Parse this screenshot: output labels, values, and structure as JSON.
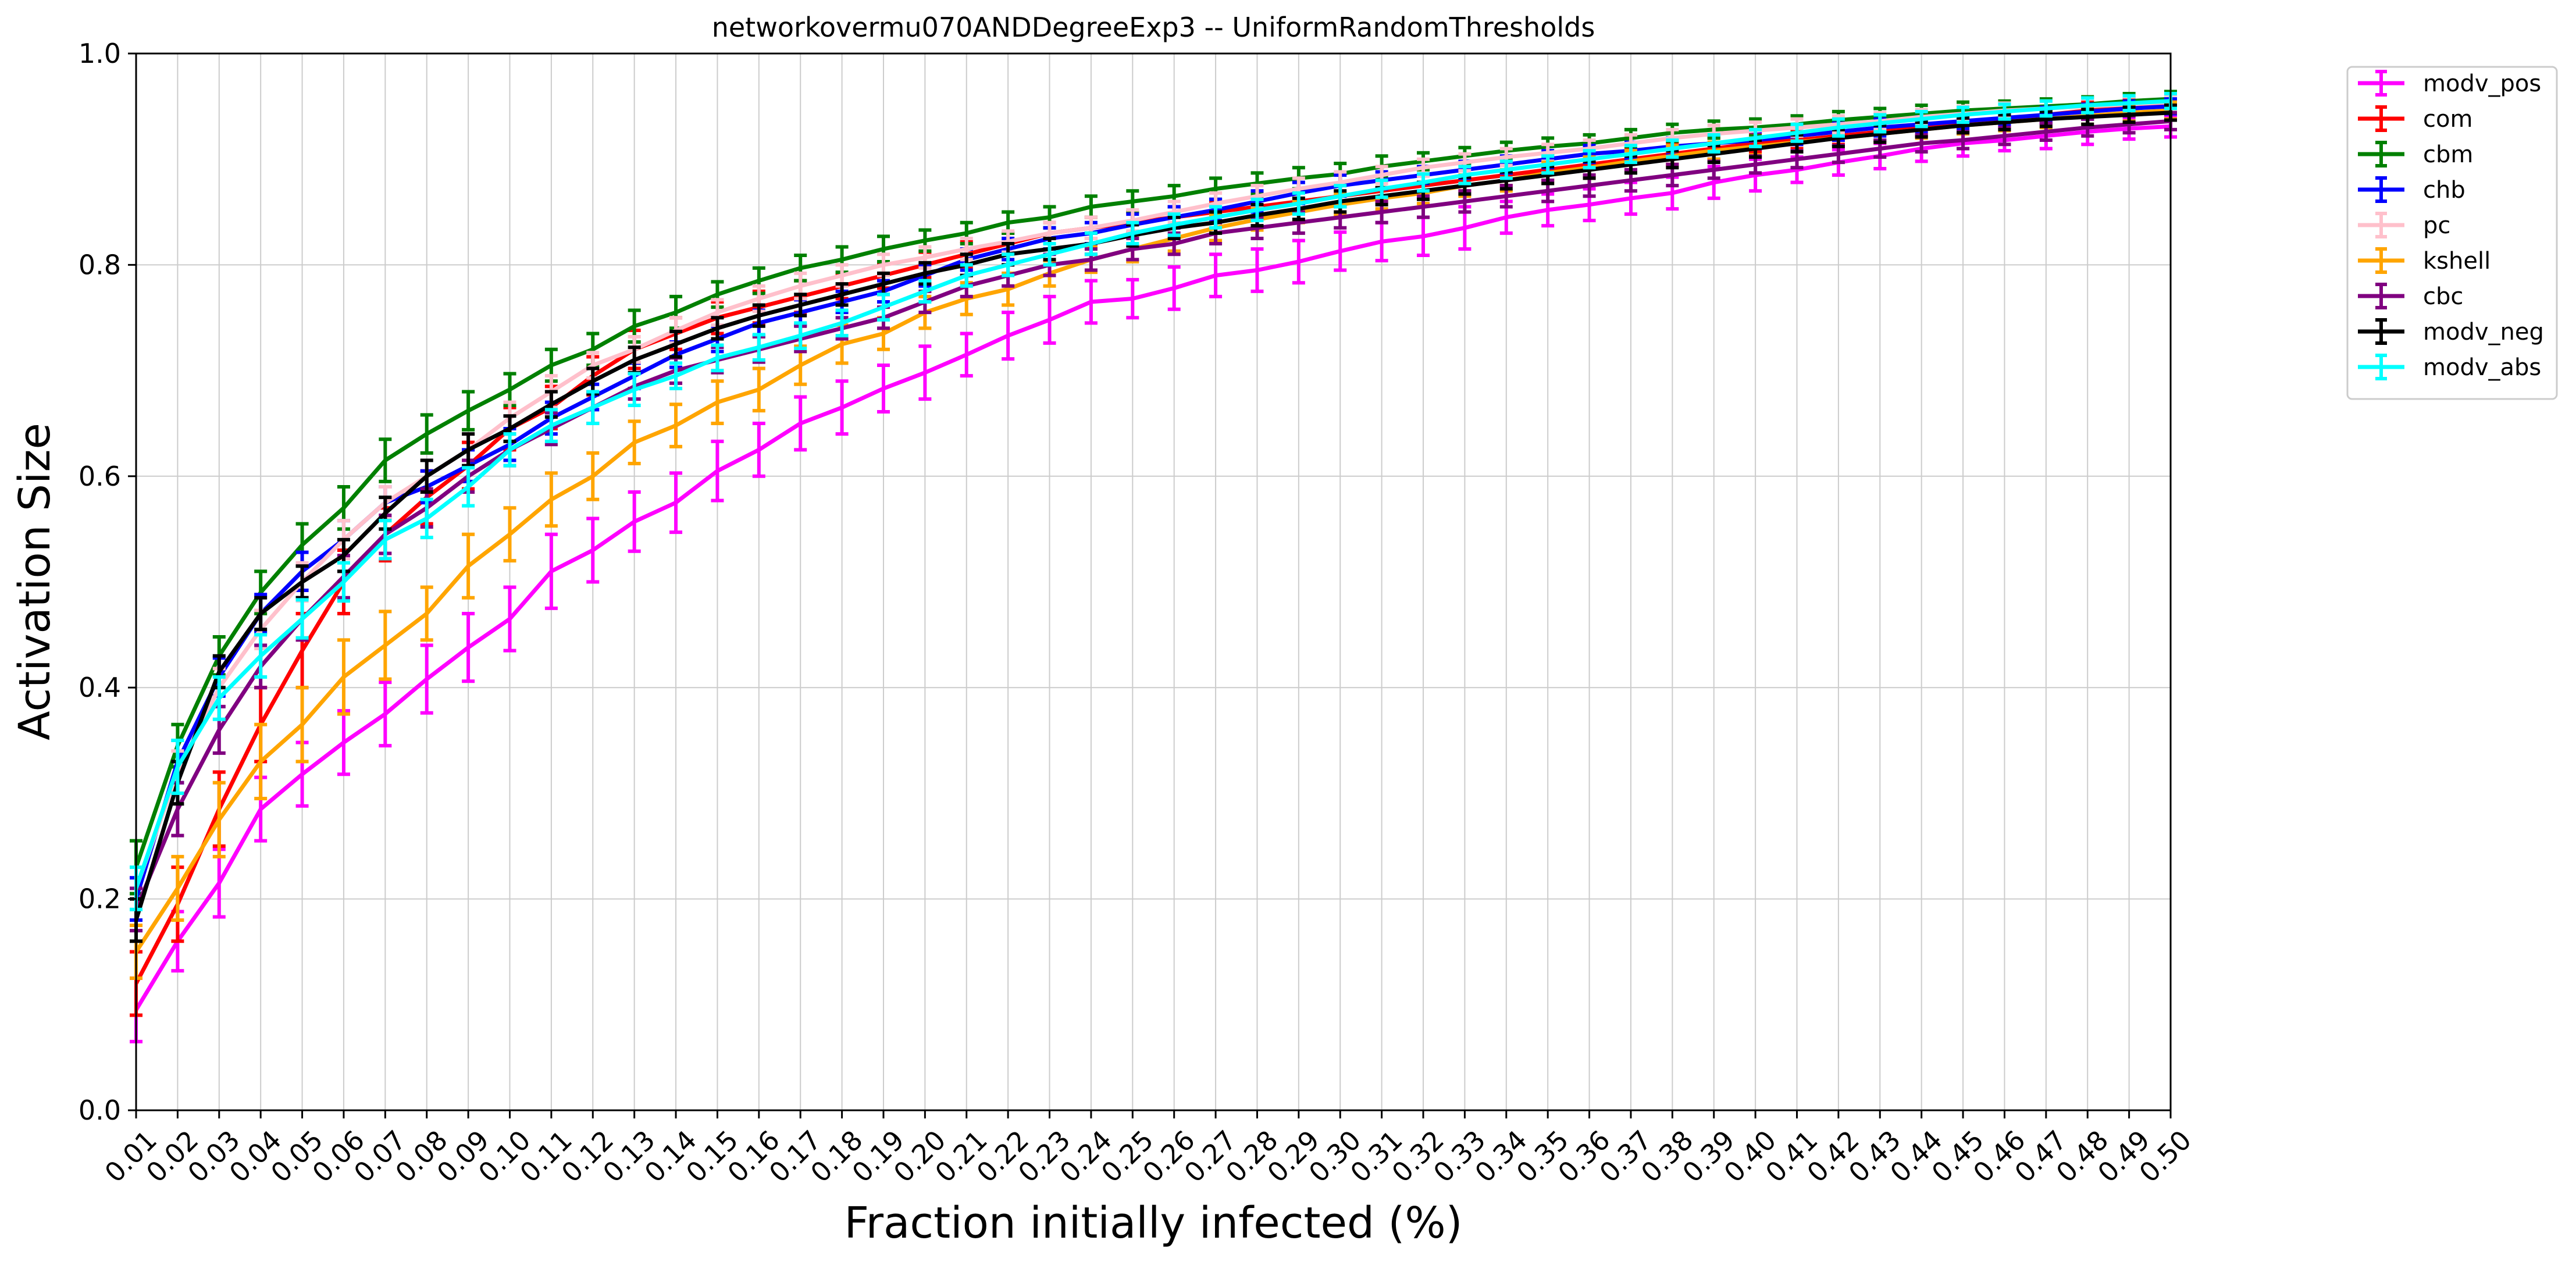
{
  "chart_data": {
    "type": "line",
    "title": "networkovermu070ANDDegreeExp3 -- UniformRandomThresholds",
    "xlabel": "Fraction initially infected (%)",
    "ylabel": "Activation Size",
    "x": [
      0.01,
      0.02,
      0.03,
      0.04,
      0.05,
      0.06,
      0.07,
      0.08,
      0.09,
      0.1,
      0.11,
      0.12,
      0.13,
      0.14,
      0.15,
      0.16,
      0.17,
      0.18,
      0.19,
      0.2,
      0.21,
      0.22,
      0.23,
      0.24,
      0.25,
      0.26,
      0.27,
      0.28,
      0.29,
      0.3,
      0.31,
      0.32,
      0.33,
      0.34,
      0.35,
      0.36,
      0.37,
      0.38,
      0.39,
      0.4,
      0.41,
      0.42,
      0.43,
      0.44,
      0.45,
      0.46,
      0.47,
      0.48,
      0.49,
      0.5
    ],
    "xtick_labels": [
      "0.01",
      "0.02",
      "0.03",
      "0.04",
      "0.05",
      "0.06",
      "0.07",
      "0.08",
      "0.09",
      "0.10",
      "0.11",
      "0.12",
      "0.13",
      "0.14",
      "0.15",
      "0.16",
      "0.17",
      "0.18",
      "0.19",
      "0.20",
      "0.21",
      "0.22",
      "0.23",
      "0.24",
      "0.25",
      "0.26",
      "0.27",
      "0.28",
      "0.29",
      "0.30",
      "0.31",
      "0.32",
      "0.33",
      "0.34",
      "0.35",
      "0.36",
      "0.37",
      "0.38",
      "0.39",
      "0.40",
      "0.41",
      "0.42",
      "0.43",
      "0.44",
      "0.45",
      "0.46",
      "0.47",
      "0.48",
      "0.49",
      "0.50"
    ],
    "ylim": [
      0.0,
      1.0
    ],
    "yticks": [
      0.0,
      0.2,
      0.4,
      0.6,
      0.8,
      1.0
    ],
    "ytick_labels": [
      "0.0",
      "0.2",
      "0.4",
      "0.6",
      "0.8",
      "1.0"
    ],
    "grid": true,
    "legend_position": "outside-top-right",
    "series": [
      {
        "name": "modv_pos",
        "color": "#ff00ff",
        "values": [
          0.095,
          0.16,
          0.215,
          0.285,
          0.318,
          0.348,
          0.375,
          0.408,
          0.438,
          0.465,
          0.51,
          0.53,
          0.557,
          0.575,
          0.605,
          0.625,
          0.65,
          0.665,
          0.683,
          0.698,
          0.715,
          0.733,
          0.748,
          0.765,
          0.768,
          0.778,
          0.79,
          0.795,
          0.803,
          0.813,
          0.822,
          0.827,
          0.835,
          0.845,
          0.852,
          0.857,
          0.863,
          0.868,
          0.878,
          0.885,
          0.89,
          0.897,
          0.903,
          0.91,
          0.915,
          0.918,
          0.922,
          0.926,
          0.929,
          0.931
        ],
        "errors": [
          0.03,
          0.028,
          0.032,
          0.03,
          0.03,
          0.03,
          0.03,
          0.032,
          0.032,
          0.03,
          0.035,
          0.03,
          0.028,
          0.028,
          0.028,
          0.025,
          0.025,
          0.025,
          0.022,
          0.025,
          0.02,
          0.022,
          0.022,
          0.02,
          0.018,
          0.02,
          0.02,
          0.02,
          0.02,
          0.018,
          0.018,
          0.018,
          0.02,
          0.015,
          0.015,
          0.015,
          0.015,
          0.015,
          0.015,
          0.015,
          0.012,
          0.012,
          0.012,
          0.012,
          0.012,
          0.01,
          0.012,
          0.012,
          0.01,
          0.01
        ]
      },
      {
        "name": "com",
        "color": "#ff0000",
        "values": [
          0.12,
          0.195,
          0.285,
          0.365,
          0.435,
          0.5,
          0.545,
          0.58,
          0.61,
          0.645,
          0.665,
          0.695,
          0.72,
          0.735,
          0.75,
          0.76,
          0.77,
          0.78,
          0.79,
          0.8,
          0.81,
          0.82,
          0.83,
          0.835,
          0.84,
          0.845,
          0.85,
          0.855,
          0.86,
          0.865,
          0.87,
          0.875,
          0.88,
          0.885,
          0.89,
          0.895,
          0.9,
          0.905,
          0.91,
          0.915,
          0.918,
          0.922,
          0.926,
          0.93,
          0.934,
          0.938,
          0.942,
          0.946,
          0.95,
          0.953
        ],
        "errors": [
          0.03,
          0.035,
          0.035,
          0.035,
          0.035,
          0.03,
          0.025,
          0.025,
          0.022,
          0.02,
          0.02,
          0.018,
          0.018,
          0.015,
          0.015,
          0.015,
          0.015,
          0.012,
          0.012,
          0.012,
          0.012,
          0.01,
          0.01,
          0.01,
          0.01,
          0.01,
          0.01,
          0.01,
          0.01,
          0.01,
          0.01,
          0.01,
          0.01,
          0.01,
          0.01,
          0.01,
          0.01,
          0.01,
          0.01,
          0.008,
          0.008,
          0.008,
          0.008,
          0.008,
          0.008,
          0.008,
          0.008,
          0.008,
          0.008,
          0.008
        ]
      },
      {
        "name": "cbm",
        "color": "#008000",
        "values": [
          0.23,
          0.345,
          0.43,
          0.49,
          0.535,
          0.57,
          0.615,
          0.64,
          0.662,
          0.682,
          0.705,
          0.72,
          0.742,
          0.755,
          0.772,
          0.785,
          0.797,
          0.805,
          0.815,
          0.823,
          0.83,
          0.84,
          0.845,
          0.855,
          0.86,
          0.865,
          0.872,
          0.877,
          0.882,
          0.886,
          0.893,
          0.898,
          0.903,
          0.908,
          0.912,
          0.915,
          0.92,
          0.925,
          0.928,
          0.93,
          0.933,
          0.937,
          0.94,
          0.943,
          0.946,
          0.948,
          0.95,
          0.952,
          0.955,
          0.957
        ],
        "errors": [
          0.025,
          0.02,
          0.018,
          0.02,
          0.02,
          0.02,
          0.02,
          0.018,
          0.018,
          0.015,
          0.015,
          0.015,
          0.015,
          0.015,
          0.012,
          0.012,
          0.012,
          0.012,
          0.012,
          0.01,
          0.01,
          0.01,
          0.01,
          0.01,
          0.01,
          0.01,
          0.01,
          0.01,
          0.01,
          0.01,
          0.01,
          0.008,
          0.008,
          0.008,
          0.008,
          0.008,
          0.008,
          0.008,
          0.008,
          0.008,
          0.008,
          0.008,
          0.008,
          0.008,
          0.008,
          0.007,
          0.007,
          0.007,
          0.007,
          0.007
        ]
      },
      {
        "name": "chb",
        "color": "#0000ff",
        "values": [
          0.2,
          0.33,
          0.41,
          0.47,
          0.51,
          0.54,
          0.575,
          0.59,
          0.61,
          0.63,
          0.655,
          0.675,
          0.695,
          0.715,
          0.73,
          0.745,
          0.755,
          0.765,
          0.775,
          0.79,
          0.805,
          0.815,
          0.825,
          0.83,
          0.838,
          0.845,
          0.852,
          0.86,
          0.868,
          0.875,
          0.88,
          0.885,
          0.89,
          0.895,
          0.9,
          0.905,
          0.908,
          0.912,
          0.915,
          0.918,
          0.922,
          0.926,
          0.93,
          0.933,
          0.936,
          0.939,
          0.942,
          0.945,
          0.948,
          0.95
        ],
        "errors": [
          0.02,
          0.02,
          0.018,
          0.018,
          0.018,
          0.018,
          0.015,
          0.015,
          0.015,
          0.015,
          0.015,
          0.012,
          0.012,
          0.012,
          0.012,
          0.012,
          0.012,
          0.01,
          0.01,
          0.01,
          0.01,
          0.01,
          0.01,
          0.01,
          0.01,
          0.01,
          0.01,
          0.01,
          0.01,
          0.01,
          0.008,
          0.008,
          0.008,
          0.008,
          0.008,
          0.008,
          0.008,
          0.008,
          0.008,
          0.008,
          0.008,
          0.008,
          0.008,
          0.007,
          0.007,
          0.007,
          0.007,
          0.007,
          0.007,
          0.007
        ]
      },
      {
        "name": "pc",
        "color": "#ffc0cb",
        "values": [
          0.21,
          0.32,
          0.4,
          0.455,
          0.5,
          0.54,
          0.575,
          0.6,
          0.625,
          0.655,
          0.68,
          0.705,
          0.72,
          0.738,
          0.755,
          0.768,
          0.78,
          0.79,
          0.8,
          0.807,
          0.815,
          0.822,
          0.83,
          0.835,
          0.842,
          0.85,
          0.858,
          0.865,
          0.872,
          0.878,
          0.885,
          0.892,
          0.897,
          0.902,
          0.906,
          0.91,
          0.915,
          0.92,
          0.924,
          0.927,
          0.93,
          0.933,
          0.936,
          0.94,
          0.943,
          0.946,
          0.948,
          0.95,
          0.952,
          0.954
        ],
        "errors": [
          0.02,
          0.02,
          0.018,
          0.018,
          0.018,
          0.018,
          0.015,
          0.015,
          0.015,
          0.015,
          0.015,
          0.012,
          0.012,
          0.012,
          0.012,
          0.012,
          0.012,
          0.01,
          0.01,
          0.01,
          0.01,
          0.01,
          0.01,
          0.01,
          0.01,
          0.01,
          0.01,
          0.01,
          0.01,
          0.01,
          0.008,
          0.008,
          0.008,
          0.008,
          0.008,
          0.008,
          0.008,
          0.008,
          0.008,
          0.008,
          0.008,
          0.008,
          0.008,
          0.007,
          0.007,
          0.007,
          0.007,
          0.007,
          0.007,
          0.007
        ]
      },
      {
        "name": "kshell",
        "color": "#ffa500",
        "values": [
          0.15,
          0.21,
          0.275,
          0.33,
          0.365,
          0.41,
          0.44,
          0.47,
          0.515,
          0.545,
          0.578,
          0.6,
          0.632,
          0.648,
          0.67,
          0.682,
          0.705,
          0.725,
          0.735,
          0.755,
          0.768,
          0.777,
          0.792,
          0.805,
          0.815,
          0.825,
          0.835,
          0.843,
          0.85,
          0.857,
          0.863,
          0.868,
          0.875,
          0.88,
          0.887,
          0.892,
          0.898,
          0.903,
          0.908,
          0.912,
          0.916,
          0.92,
          0.924,
          0.928,
          0.932,
          0.935,
          0.938,
          0.941,
          0.944,
          0.946
        ],
        "errors": [
          0.025,
          0.03,
          0.035,
          0.035,
          0.035,
          0.035,
          0.032,
          0.025,
          0.03,
          0.025,
          0.025,
          0.022,
          0.02,
          0.02,
          0.02,
          0.02,
          0.018,
          0.018,
          0.015,
          0.015,
          0.015,
          0.015,
          0.012,
          0.012,
          0.012,
          0.012,
          0.012,
          0.01,
          0.01,
          0.01,
          0.01,
          0.01,
          0.01,
          0.01,
          0.01,
          0.01,
          0.01,
          0.01,
          0.008,
          0.008,
          0.008,
          0.008,
          0.008,
          0.008,
          0.008,
          0.008,
          0.008,
          0.008,
          0.008,
          0.008
        ]
      },
      {
        "name": "cbc",
        "color": "#800080",
        "values": [
          0.19,
          0.285,
          0.36,
          0.42,
          0.465,
          0.505,
          0.545,
          0.57,
          0.6,
          0.625,
          0.645,
          0.665,
          0.685,
          0.7,
          0.71,
          0.72,
          0.73,
          0.74,
          0.75,
          0.765,
          0.78,
          0.79,
          0.8,
          0.805,
          0.815,
          0.82,
          0.83,
          0.835,
          0.84,
          0.845,
          0.85,
          0.855,
          0.86,
          0.865,
          0.87,
          0.875,
          0.88,
          0.885,
          0.89,
          0.895,
          0.9,
          0.905,
          0.91,
          0.915,
          0.918,
          0.922,
          0.926,
          0.93,
          0.933,
          0.936
        ],
        "errors": [
          0.02,
          0.025,
          0.022,
          0.02,
          0.02,
          0.02,
          0.018,
          0.018,
          0.015,
          0.015,
          0.015,
          0.015,
          0.012,
          0.012,
          0.012,
          0.012,
          0.012,
          0.01,
          0.01,
          0.01,
          0.01,
          0.01,
          0.01,
          0.01,
          0.01,
          0.01,
          0.01,
          0.01,
          0.01,
          0.01,
          0.01,
          0.01,
          0.01,
          0.01,
          0.01,
          0.01,
          0.01,
          0.01,
          0.008,
          0.008,
          0.008,
          0.008,
          0.008,
          0.008,
          0.008,
          0.008,
          0.008,
          0.008,
          0.008,
          0.008
        ]
      },
      {
        "name": "modv_neg",
        "color": "#000000",
        "values": [
          0.18,
          0.31,
          0.415,
          0.47,
          0.5,
          0.525,
          0.565,
          0.6,
          0.625,
          0.645,
          0.668,
          0.69,
          0.71,
          0.725,
          0.74,
          0.752,
          0.762,
          0.772,
          0.782,
          0.792,
          0.8,
          0.81,
          0.815,
          0.82,
          0.828,
          0.835,
          0.84,
          0.847,
          0.853,
          0.86,
          0.865,
          0.87,
          0.875,
          0.88,
          0.885,
          0.89,
          0.895,
          0.9,
          0.905,
          0.91,
          0.915,
          0.92,
          0.924,
          0.928,
          0.932,
          0.935,
          0.938,
          0.94,
          0.942,
          0.944
        ],
        "errors": [
          0.02,
          0.02,
          0.015,
          0.015,
          0.015,
          0.015,
          0.015,
          0.015,
          0.015,
          0.012,
          0.012,
          0.012,
          0.012,
          0.012,
          0.01,
          0.01,
          0.01,
          0.01,
          0.01,
          0.01,
          0.01,
          0.01,
          0.01,
          0.01,
          0.01,
          0.01,
          0.01,
          0.01,
          0.01,
          0.01,
          0.008,
          0.008,
          0.008,
          0.008,
          0.008,
          0.008,
          0.008,
          0.008,
          0.008,
          0.008,
          0.008,
          0.008,
          0.008,
          0.007,
          0.007,
          0.007,
          0.007,
          0.007,
          0.007,
          0.007
        ]
      },
      {
        "name": "modv_abs",
        "color": "#00ffff",
        "values": [
          0.21,
          0.325,
          0.39,
          0.43,
          0.465,
          0.5,
          0.54,
          0.56,
          0.59,
          0.625,
          0.648,
          0.665,
          0.682,
          0.695,
          0.712,
          0.722,
          0.733,
          0.745,
          0.76,
          0.775,
          0.79,
          0.8,
          0.81,
          0.82,
          0.83,
          0.838,
          0.845,
          0.852,
          0.858,
          0.865,
          0.872,
          0.878,
          0.885,
          0.89,
          0.895,
          0.9,
          0.905,
          0.91,
          0.915,
          0.92,
          0.925,
          0.93,
          0.934,
          0.938,
          0.942,
          0.945,
          0.948,
          0.951,
          0.953,
          0.955
        ],
        "errors": [
          0.02,
          0.025,
          0.02,
          0.02,
          0.018,
          0.018,
          0.018,
          0.018,
          0.018,
          0.015,
          0.015,
          0.015,
          0.015,
          0.012,
          0.012,
          0.012,
          0.012,
          0.012,
          0.012,
          0.01,
          0.01,
          0.01,
          0.01,
          0.01,
          0.01,
          0.01,
          0.01,
          0.01,
          0.01,
          0.01,
          0.008,
          0.008,
          0.008,
          0.008,
          0.008,
          0.008,
          0.008,
          0.008,
          0.008,
          0.008,
          0.008,
          0.008,
          0.008,
          0.007,
          0.007,
          0.007,
          0.007,
          0.007,
          0.007,
          0.007
        ]
      }
    ]
  }
}
